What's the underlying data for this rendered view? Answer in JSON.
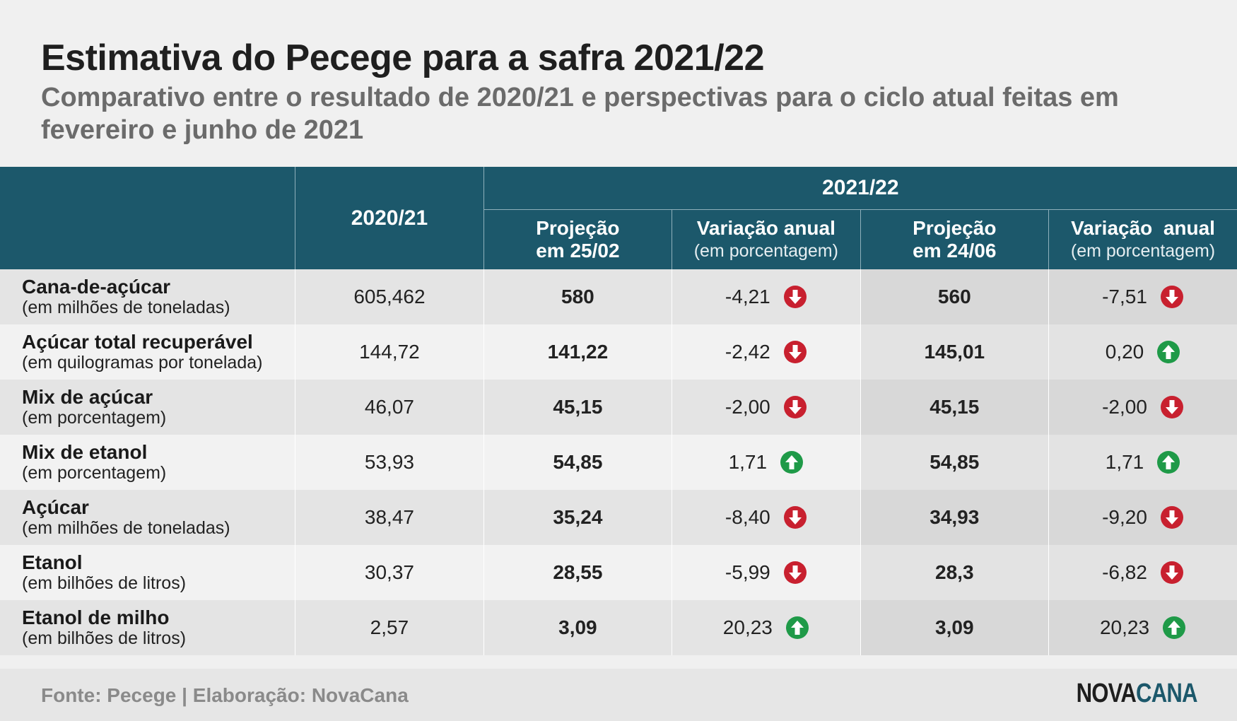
{
  "title": "Estimativa do Pecege para a safra 2021/22",
  "subtitle": "Comparativo entre o resultado de 2020/21 e perspectivas para o ciclo atual feitas em fevereiro e junho de 2021",
  "header": {
    "season_prev": "2020/21",
    "season_cur": "2021/22",
    "proj_feb_l1": "Projeção",
    "proj_feb_l2": "em 25/02",
    "var_feb_l1": "Variação anual",
    "var_feb_unit": "(em porcentagem)",
    "proj_jun_l1": "Projeção",
    "proj_jun_l2": "em 24/06",
    "var_jun_l1": "Variação  anual",
    "var_jun_unit": "(em porcentagem)"
  },
  "rows": [
    {
      "name": "Cana-de-açúcar",
      "unit": "(em milhões de toneladas)",
      "prev": "605,462",
      "proj_feb": "580",
      "var_feb": "-4,21",
      "var_feb_dir": "down",
      "proj_jun": "560",
      "var_jun": "-7,51",
      "var_jun_dir": "down"
    },
    {
      "name": "Açúcar total recuperável",
      "unit": "(em quilogramas por tonelada)",
      "prev": "144,72",
      "proj_feb": "141,22",
      "var_feb": "-2,42",
      "var_feb_dir": "down",
      "proj_jun": "145,01",
      "var_jun": "0,20",
      "var_jun_dir": "up"
    },
    {
      "name": "Mix de açúcar",
      "unit": "(em porcentagem)",
      "prev": "46,07",
      "proj_feb": "45,15",
      "var_feb": "-2,00",
      "var_feb_dir": "down",
      "proj_jun": "45,15",
      "var_jun": "-2,00",
      "var_jun_dir": "down"
    },
    {
      "name": "Mix de etanol",
      "unit": "(em porcentagem)",
      "prev": "53,93",
      "proj_feb": "54,85",
      "var_feb": "1,71",
      "var_feb_dir": "up",
      "proj_jun": "54,85",
      "var_jun": "1,71",
      "var_jun_dir": "up"
    },
    {
      "name": "Açúcar",
      "unit": "(em milhões de toneladas)",
      "prev": "38,47",
      "proj_feb": "35,24",
      "var_feb": "-8,40",
      "var_feb_dir": "down",
      "proj_jun": "34,93",
      "var_jun": "-9,20",
      "var_jun_dir": "down"
    },
    {
      "name": "Etanol",
      "unit": "(em bilhões de litros)",
      "prev": "30,37",
      "proj_feb": "28,55",
      "var_feb": "-5,99",
      "var_feb_dir": "down",
      "proj_jun": "28,3",
      "var_jun": "-6,82",
      "var_jun_dir": "down"
    },
    {
      "name": "Etanol de milho",
      "unit": "(em bilhões de litros)",
      "prev": "2,57",
      "proj_feb": "3,09",
      "var_feb": "20,23",
      "var_feb_dir": "up",
      "proj_jun": "3,09",
      "var_jun": "20,23",
      "var_jun_dir": "up"
    }
  ],
  "footer": {
    "source": "Fonte: Pecege | Elaboração: NovaCana",
    "logo_part1": "NOVA",
    "logo_part2": "CANA"
  },
  "colors": {
    "header_bg": "#1c586b",
    "arrow_down": "#c8202f",
    "arrow_up": "#1f9a48"
  },
  "chart_data": {
    "type": "table",
    "title": "Estimativa do Pecege para a safra 2021/22",
    "columns": [
      "",
      "2020/21",
      "2021/22 Projeção em 25/02",
      "2021/22 Variação anual (em porcentagem)",
      "2021/22 Projeção em 24/06",
      "2021/22 Variação anual (em porcentagem)"
    ],
    "rows": [
      [
        "Cana-de-açúcar (em milhões de toneladas)",
        605.462,
        580,
        -4.21,
        560,
        -7.51
      ],
      [
        "Açúcar total recuperável (em quilogramas por tonelada)",
        144.72,
        141.22,
        -2.42,
        145.01,
        0.2
      ],
      [
        "Mix de açúcar (em porcentagem)",
        46.07,
        45.15,
        -2.0,
        45.15,
        -2.0
      ],
      [
        "Mix de etanol (em porcentagem)",
        53.93,
        54.85,
        1.71,
        54.85,
        1.71
      ],
      [
        "Açúcar (em milhões de toneladas)",
        38.47,
        35.24,
        -8.4,
        34.93,
        -9.2
      ],
      [
        "Etanol (em bilhões de litros)",
        30.37,
        28.55,
        -5.99,
        28.3,
        -6.82
      ],
      [
        "Etanol de milho (em bilhões de litros)",
        2.57,
        3.09,
        20.23,
        3.09,
        20.23
      ]
    ]
  }
}
